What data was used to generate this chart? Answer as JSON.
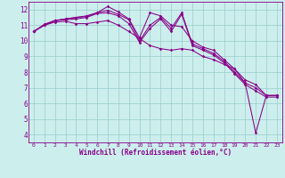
{
  "xlabel": "Windchill (Refroidissement éolien,°C)",
  "bg_color": "#cceeed",
  "line_color": "#880088",
  "grid_color": "#99cccc",
  "xlim": [
    -0.5,
    23.5
  ],
  "ylim": [
    3.5,
    12.5
  ],
  "yticks": [
    4,
    5,
    6,
    7,
    8,
    9,
    10,
    11,
    12
  ],
  "xticks": [
    0,
    1,
    2,
    3,
    4,
    5,
    6,
    7,
    8,
    9,
    10,
    11,
    12,
    13,
    14,
    15,
    16,
    17,
    18,
    19,
    20,
    21,
    22,
    23
  ],
  "line1": [
    10.6,
    11.0,
    11.2,
    11.25,
    11.1,
    11.1,
    11.2,
    11.3,
    11.0,
    10.6,
    10.15,
    9.7,
    9.5,
    9.4,
    9.5,
    9.4,
    9.0,
    8.8,
    8.5,
    8.2,
    7.5,
    7.2,
    6.5,
    6.5
  ],
  "line2": [
    10.6,
    11.05,
    11.3,
    11.4,
    11.5,
    11.6,
    11.8,
    12.2,
    11.85,
    11.4,
    10.2,
    11.8,
    11.6,
    11.0,
    10.9,
    10.0,
    9.6,
    9.4,
    8.8,
    8.2,
    7.3,
    4.1,
    6.5,
    6.5
  ],
  "line3": [
    10.6,
    11.05,
    11.3,
    11.4,
    11.5,
    11.55,
    11.8,
    11.95,
    11.7,
    11.35,
    10.0,
    11.0,
    11.5,
    10.8,
    11.8,
    9.8,
    9.5,
    9.2,
    8.7,
    8.0,
    7.3,
    7.0,
    6.5,
    6.5
  ],
  "line4": [
    10.6,
    11.0,
    11.3,
    11.35,
    11.4,
    11.5,
    11.75,
    11.8,
    11.6,
    11.1,
    9.9,
    10.8,
    11.4,
    10.6,
    11.7,
    9.7,
    9.4,
    9.1,
    8.6,
    7.9,
    7.2,
    6.8,
    6.4,
    6.4
  ]
}
